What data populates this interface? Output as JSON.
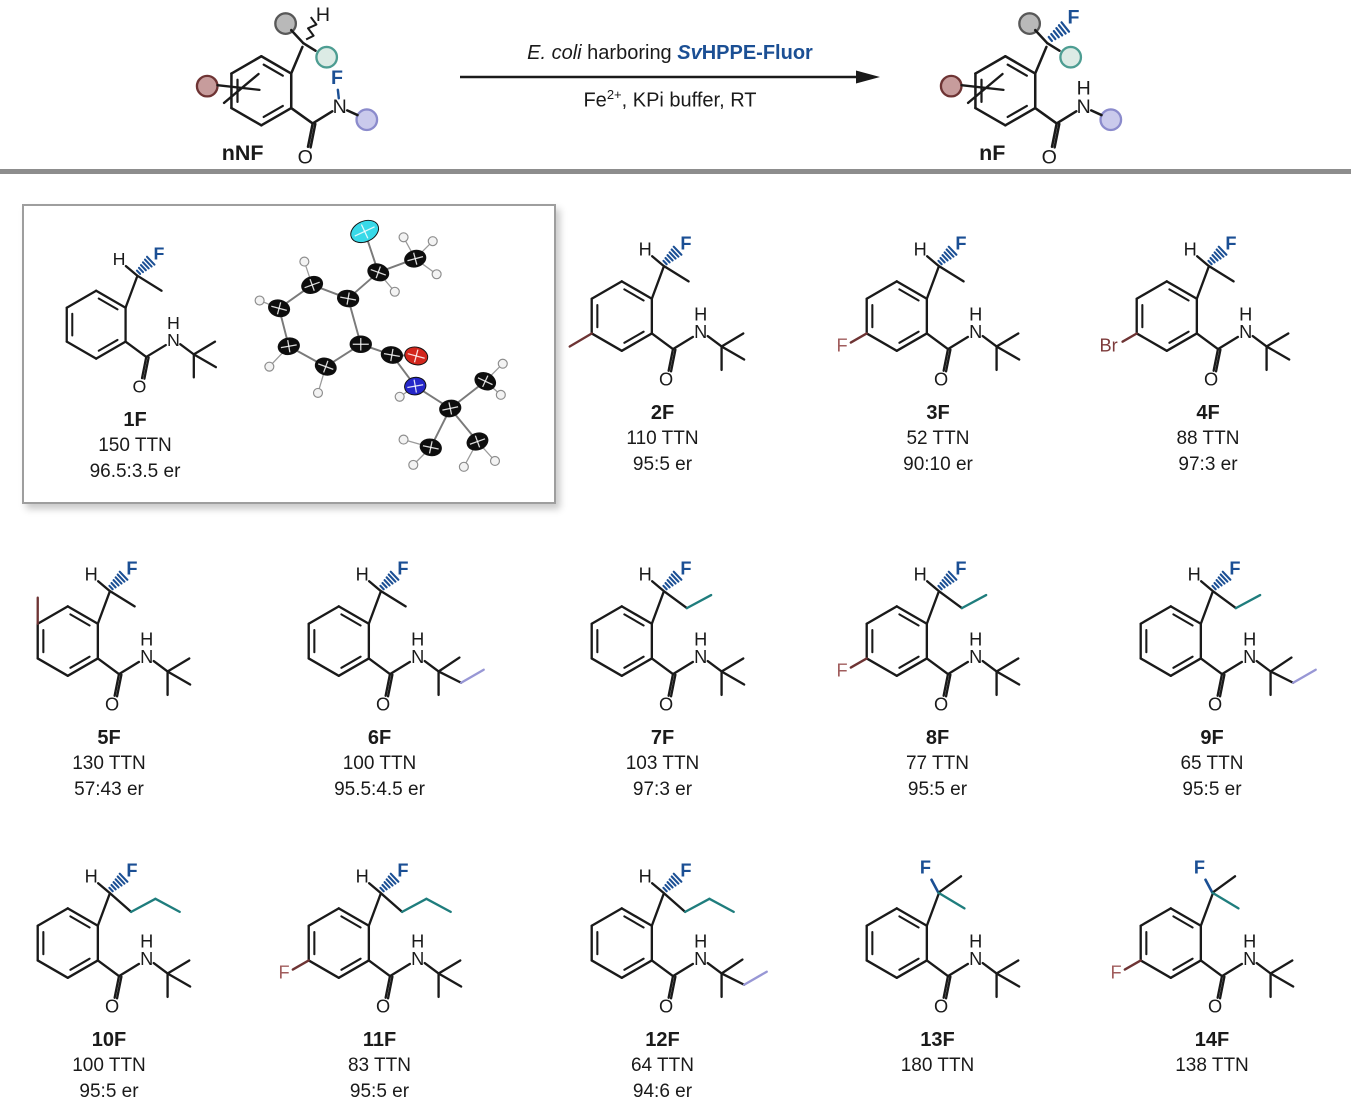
{
  "scheme": {
    "substrate_label": "nNF",
    "product_label": "nF",
    "organism": "E. coli",
    "harboring": " harboring ",
    "enzyme_prefix": "Sv",
    "enzyme_name": "HPPE-Fluor",
    "cond_pre": "Fe",
    "cond_sup": "2+",
    "cond_rest": ", KPi buffer, RT"
  },
  "atoms": {
    "h": "H",
    "f": "F",
    "n": "N",
    "o": "O",
    "br": "Br"
  },
  "colors": {
    "black": "#1a1a1a",
    "blue": "#1b4f94",
    "teal": "#1f7d7d",
    "purple": "#9897d5",
    "maroon_line": "#6e3434",
    "maroon_f": "#a05c5c",
    "maroon_br": "#7c3a3a",
    "divider": "#8d8d8d",
    "circle_gray_fill": "#b9b9b9",
    "circle_gray_stroke": "#585858",
    "circle_teal_fill": "#dcebe5",
    "circle_teal_stroke": "#4d9d92",
    "circle_purple_fill": "#cacaec",
    "circle_purple_stroke": "#8b8bcc",
    "circle_maroon_fill": "#c79c9c",
    "circle_maroon_stroke": "#6e3434",
    "ortep_f": "#38d9e8",
    "ortep_o": "#d3261c",
    "ortep_n": "#2526c9"
  },
  "compounds": [
    {
      "id": "1F",
      "ttn": "150 TTN",
      "er": "96.5:3.5 er",
      "chain": "methyl",
      "amide": "tBu",
      "ring_sub": ""
    },
    {
      "id": "2F",
      "ttn": "110 TTN",
      "er": "95:5 er",
      "chain": "methyl",
      "amide": "tBu",
      "ring_sub": "Me-5"
    },
    {
      "id": "3F",
      "ttn": "52 TTN",
      "er": "90:10 er",
      "chain": "methyl",
      "amide": "tBu",
      "ring_sub": "F-5"
    },
    {
      "id": "4F",
      "ttn": "88 TTN",
      "er": "97:3 er",
      "chain": "methyl",
      "amide": "tBu",
      "ring_sub": "Br-5"
    },
    {
      "id": "5F",
      "ttn": "130 TTN",
      "er": "57:43 er",
      "chain": "methyl",
      "amide": "tBu",
      "ring_sub": "Me-3"
    },
    {
      "id": "6F",
      "ttn": "100 TTN",
      "er": "95.5:4.5 er",
      "chain": "methyl",
      "amide": "tAmyl",
      "ring_sub": ""
    },
    {
      "id": "7F",
      "ttn": "103 TTN",
      "er": "97:3 er",
      "chain": "ethyl",
      "amide": "tBu",
      "ring_sub": ""
    },
    {
      "id": "8F",
      "ttn": "77 TTN",
      "er": "95:5 er",
      "chain": "ethyl",
      "amide": "tBu",
      "ring_sub": "F-5"
    },
    {
      "id": "9F",
      "ttn": "65 TTN",
      "er": "95:5 er",
      "chain": "ethyl",
      "amide": "tAmyl",
      "ring_sub": ""
    },
    {
      "id": "10F",
      "ttn": "100 TTN",
      "er": "95:5 er",
      "chain": "propyl",
      "amide": "tBu",
      "ring_sub": ""
    },
    {
      "id": "11F",
      "ttn": "83 TTN",
      "er": "95:5 er",
      "chain": "propyl",
      "amide": "tBu",
      "ring_sub": "F-5"
    },
    {
      "id": "12F",
      "ttn": "64 TTN",
      "er": "94:6 er",
      "chain": "propyl",
      "amide": "tAmyl",
      "ring_sub": ""
    },
    {
      "id": "13F",
      "ttn": "180 TTN",
      "er": "",
      "chain": "gem",
      "amide": "tBu",
      "ring_sub": ""
    },
    {
      "id": "14F",
      "ttn": "138 TTN",
      "er": "",
      "chain": "gem",
      "amide": "tBu",
      "ring_sub": "F-5"
    }
  ]
}
